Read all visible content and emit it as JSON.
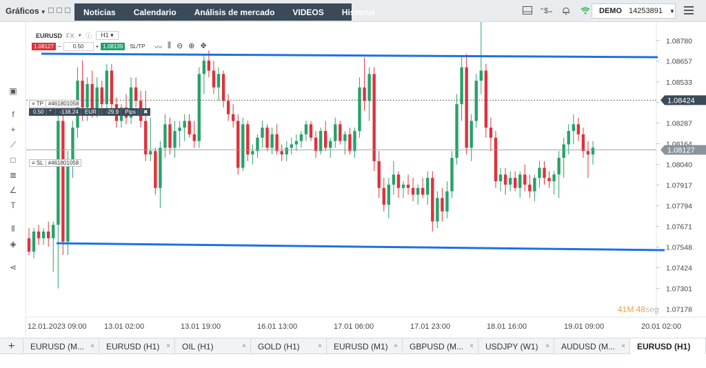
{
  "topbar": {
    "charts_menu": "Gráficos",
    "nav": [
      "Noticias",
      "Calendario",
      "Análisis de mercado",
      "VIDEOS",
      "Historial"
    ],
    "account_type": "DEMO",
    "account_number": "14253891"
  },
  "instrument": {
    "symbol": "EURUSD",
    "type": "FX",
    "timeframe": "H1",
    "sell_price": "1.08127",
    "lot": "0.50",
    "buy_price": "1.08139",
    "sltp_label": "SL/TP"
  },
  "orders": {
    "tp": {
      "label": "TP",
      "id": "#461801058"
    },
    "sl": {
      "label": "SL",
      "id": "#461801058"
    },
    "position": {
      "volume": "0.50",
      "pnl": "-138.24",
      "currency": "EUR",
      "pips": "-29.9",
      "pips_unit": "Pips"
    }
  },
  "timer": {
    "minutes": "41",
    "m_unit": "M",
    "seconds": "48",
    "s_unit": "seg"
  },
  "tabs": [
    {
      "label": "EURUSD (M...",
      "active": false
    },
    {
      "label": "EURUSD (H1)",
      "active": false
    },
    {
      "label": "OIL (H1)",
      "active": false
    },
    {
      "label": "GOLD (H1)",
      "active": false
    },
    {
      "label": "EURUSD (M1)",
      "active": false
    },
    {
      "label": "GBPUSD (M...",
      "active": false
    },
    {
      "label": "USDJPY (W1)",
      "active": false
    },
    {
      "label": "AUDUSD (M...",
      "active": false
    },
    {
      "label": "EURUSD (H1)",
      "active": true
    }
  ],
  "colors": {
    "up": "#26a269",
    "down": "#e0313a",
    "trendline": "#1e6fe6",
    "price_tag": "#3b4a59",
    "wifi": "#2db34a",
    "timer_minutes": "#e8a33d"
  },
  "chart_data": {
    "type": "candlestick",
    "symbol": "EURUSD",
    "timeframe": "H1",
    "y_ticks": [
      "1.08780",
      "1.08657",
      "1.08533",
      "1.08410",
      "1.08287",
      "1.08164",
      "1.08040",
      "1.07917",
      "1.07794",
      "1.07671",
      "1.07548",
      "1.07424",
      "1.07301",
      "1.07178"
    ],
    "ylim": [
      1.0713,
      1.0889
    ],
    "x_labels": [
      "12.01.2023 09:00",
      "13.01 02:00",
      "13.01 19:00",
      "16.01 13:00",
      "17.01 06:00",
      "17.01 23:00",
      "18.01 16:00",
      "19.01 09:00",
      "20.01 02:00"
    ],
    "current_price": "1.08424",
    "sl_price": "1.08127",
    "candles": [
      [
        1.076,
        1.0766,
        1.075,
        1.0752
      ],
      [
        1.0752,
        1.0766,
        1.0748,
        1.0764
      ],
      [
        1.0764,
        1.0768,
        1.0756,
        1.076
      ],
      [
        1.076,
        1.0766,
        1.0756,
        1.0764
      ],
      [
        1.0764,
        1.077,
        1.0755,
        1.076
      ],
      [
        1.076,
        1.077,
        1.074,
        1.0768
      ],
      [
        1.0768,
        1.0836,
        1.073,
        1.083
      ],
      [
        1.083,
        1.0834,
        1.075,
        1.0758
      ],
      [
        1.0758,
        1.0812,
        1.075,
        1.0806
      ],
      [
        1.0806,
        1.083,
        1.0796,
        1.0826
      ],
      [
        1.0826,
        1.0862,
        1.082,
        1.0854
      ],
      [
        1.0854,
        1.0866,
        1.083,
        1.0838
      ],
      [
        1.0838,
        1.0856,
        1.083,
        1.0852
      ],
      [
        1.0852,
        1.086,
        1.0832,
        1.0836
      ],
      [
        1.0836,
        1.0856,
        1.0832,
        1.085
      ],
      [
        1.085,
        1.0854,
        1.0836,
        1.084
      ],
      [
        1.084,
        1.0864,
        1.0836,
        1.086
      ],
      [
        1.086,
        1.0864,
        1.0836,
        1.084
      ],
      [
        1.084,
        1.0844,
        1.0826,
        1.083
      ],
      [
        1.083,
        1.084,
        1.0826,
        1.0838
      ],
      [
        1.0838,
        1.0846,
        1.0828,
        1.0832
      ],
      [
        1.0832,
        1.0856,
        1.0828,
        1.085
      ],
      [
        1.085,
        1.0856,
        1.0838,
        1.0842
      ],
      [
        1.0842,
        1.0848,
        1.0826,
        1.083
      ],
      [
        1.083,
        1.0848,
        1.0806,
        1.081
      ],
      [
        1.081,
        1.0832,
        1.0806,
        1.0812
      ],
      [
        1.0812,
        1.0814,
        1.0786,
        1.079
      ],
      [
        1.079,
        1.0818,
        1.0778,
        1.0814
      ],
      [
        1.0814,
        1.0834,
        1.0808,
        1.0828
      ],
      [
        1.0828,
        1.0832,
        1.081,
        1.0814
      ],
      [
        1.0814,
        1.083,
        1.0808,
        1.0824
      ],
      [
        1.0824,
        1.083,
        1.0814,
        1.0826
      ],
      [
        1.0826,
        1.0834,
        1.0818,
        1.083
      ],
      [
        1.083,
        1.0834,
        1.082,
        1.0822
      ],
      [
        1.0822,
        1.083,
        1.0814,
        1.0818
      ],
      [
        1.0818,
        1.0862,
        1.0814,
        1.0858
      ],
      [
        1.0858,
        1.087,
        1.0846,
        1.0866
      ],
      [
        1.0866,
        1.0872,
        1.0856,
        1.086
      ],
      [
        1.086,
        1.0866,
        1.0846,
        1.085
      ],
      [
        1.085,
        1.0862,
        1.0842,
        1.0858
      ],
      [
        1.0858,
        1.086,
        1.0838,
        1.0842
      ],
      [
        1.0842,
        1.0846,
        1.083,
        1.0834
      ],
      [
        1.0834,
        1.084,
        1.0826,
        1.083
      ],
      [
        1.083,
        1.0834,
        1.0798,
        1.0802
      ],
      [
        1.0802,
        1.0832,
        1.08,
        1.0828
      ],
      [
        1.0828,
        1.083,
        1.0806,
        1.081
      ],
      [
        1.081,
        1.0816,
        1.0804,
        1.0812
      ],
      [
        1.0812,
        1.0822,
        1.0808,
        1.082
      ],
      [
        1.082,
        1.083,
        1.0814,
        1.0826
      ],
      [
        1.0826,
        1.0828,
        1.0812,
        1.0814
      ],
      [
        1.0814,
        1.0826,
        1.081,
        1.0822
      ],
      [
        1.0822,
        1.0828,
        1.081,
        1.0812
      ],
      [
        1.0812,
        1.0816,
        1.0806,
        1.081
      ],
      [
        1.081,
        1.0818,
        1.0806,
        1.0814
      ],
      [
        1.0814,
        1.082,
        1.081,
        1.0816
      ],
      [
        1.0816,
        1.0822,
        1.0812,
        1.0818
      ],
      [
        1.0818,
        1.0824,
        1.0814,
        1.0822
      ],
      [
        1.0822,
        1.083,
        1.0818,
        1.0828
      ],
      [
        1.0828,
        1.083,
        1.0818,
        1.082
      ],
      [
        1.082,
        1.0824,
        1.0808,
        1.0812
      ],
      [
        1.0812,
        1.0826,
        1.081,
        1.0824
      ],
      [
        1.0824,
        1.083,
        1.0812,
        1.0814
      ],
      [
        1.0814,
        1.082,
        1.0808,
        1.0818
      ],
      [
        1.0818,
        1.0832,
        1.0814,
        1.0828
      ],
      [
        1.0828,
        1.083,
        1.0816,
        1.0818
      ],
      [
        1.0818,
        1.0824,
        1.081,
        1.0822
      ],
      [
        1.0822,
        1.0826,
        1.081,
        1.0812
      ],
      [
        1.0812,
        1.0826,
        1.0808,
        1.0824
      ],
      [
        1.0824,
        1.0856,
        1.082,
        1.085
      ],
      [
        1.085,
        1.0868,
        1.0836,
        1.0842
      ],
      [
        1.0842,
        1.0862,
        1.083,
        1.0858
      ],
      [
        1.0858,
        1.0862,
        1.08,
        1.0806
      ],
      [
        1.0806,
        1.0812,
        1.0784,
        1.079
      ],
      [
        1.079,
        1.0796,
        1.0776,
        1.078
      ],
      [
        1.078,
        1.0796,
        1.0772,
        1.0792
      ],
      [
        1.0792,
        1.0806,
        1.0786,
        1.0798
      ],
      [
        1.0798,
        1.08,
        1.0784,
        1.079
      ],
      [
        1.079,
        1.0794,
        1.0784,
        1.0792
      ],
      [
        1.0792,
        1.0798,
        1.0786,
        1.079
      ],
      [
        1.079,
        1.0796,
        1.0782,
        1.0786
      ],
      [
        1.0786,
        1.0792,
        1.078,
        1.079
      ],
      [
        1.079,
        1.0796,
        1.0784,
        1.0786
      ],
      [
        1.0786,
        1.08,
        1.078,
        1.0796
      ],
      [
        1.0796,
        1.08,
        1.0764,
        1.077
      ],
      [
        1.077,
        1.0788,
        1.0766,
        1.0784
      ],
      [
        1.0784,
        1.079,
        1.077,
        1.0776
      ],
      [
        1.0776,
        1.0794,
        1.0772,
        1.0788
      ],
      [
        1.0788,
        1.0812,
        1.0784,
        1.0808
      ],
      [
        1.0808,
        1.0846,
        1.0804,
        1.084
      ],
      [
        1.084,
        1.0868,
        1.083,
        1.0862
      ],
      [
        1.0862,
        1.087,
        1.081,
        1.0814
      ],
      [
        1.0814,
        1.0834,
        1.0806,
        1.083
      ],
      [
        1.083,
        1.0858,
        1.0826,
        1.0854
      ],
      [
        1.0854,
        1.0894,
        1.0846,
        1.086
      ],
      [
        1.086,
        1.0864,
        1.082,
        1.0826
      ],
      [
        1.0826,
        1.0832,
        1.0812,
        1.082
      ],
      [
        1.082,
        1.0824,
        1.079,
        1.0794
      ],
      [
        1.0794,
        1.0802,
        1.0788,
        1.0798
      ],
      [
        1.0798,
        1.0802,
        1.0786,
        1.0792
      ],
      [
        1.0792,
        1.08,
        1.0788,
        1.0796
      ],
      [
        1.0796,
        1.08,
        1.0788,
        1.079
      ],
      [
        1.079,
        1.08,
        1.0784,
        1.0798
      ],
      [
        1.0798,
        1.0804,
        1.0788,
        1.0792
      ],
      [
        1.0792,
        1.0798,
        1.0784,
        1.0788
      ],
      [
        1.0788,
        1.0798,
        1.0782,
        1.0796
      ],
      [
        1.0796,
        1.0806,
        1.079,
        1.0802
      ],
      [
        1.0802,
        1.0806,
        1.0792,
        1.0796
      ],
      [
        1.0796,
        1.08,
        1.079,
        1.0794
      ],
      [
        1.0794,
        1.08,
        1.0786,
        1.0798
      ],
      [
        1.0798,
        1.0812,
        1.0784,
        1.0808
      ],
      [
        1.0808,
        1.082,
        1.0796,
        1.0816
      ],
      [
        1.0816,
        1.0828,
        1.081,
        1.0824
      ],
      [
        1.0824,
        1.0834,
        1.0816,
        1.0828
      ],
      [
        1.0828,
        1.0832,
        1.0818,
        1.0822
      ],
      [
        1.0822,
        1.0826,
        1.0808,
        1.0812
      ],
      [
        1.0812,
        1.0818,
        1.0796,
        1.081
      ],
      [
        1.081,
        1.0818,
        1.0804,
        1.0814
      ]
    ]
  }
}
